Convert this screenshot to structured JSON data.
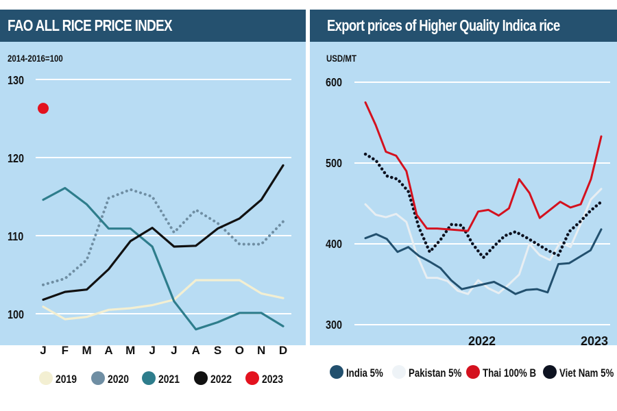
{
  "chart_data": [
    {
      "type": "line",
      "title": "FAO ALL RICE PRICE INDEX",
      "subtitle": "2014-2016=100",
      "xlabel": "",
      "ylabel": "2014-2016=100",
      "ylim": [
        97,
        130
      ],
      "yticks": [
        100,
        110,
        120,
        130
      ],
      "ytick_labels": [
        "100",
        "110",
        "120",
        "130"
      ],
      "grid": true,
      "legend_position": "bottom",
      "categories": [
        "J",
        "F",
        "M",
        "A",
        "M",
        "J",
        "J",
        "A",
        "S",
        "O",
        "N",
        "D"
      ],
      "series": [
        {
          "name": "2019",
          "color": "#f3efd2",
          "style": "solid",
          "values": [
            100.9,
            99.3,
            99.6,
            100.5,
            100.7,
            101.1,
            101.8,
            104.3,
            104.3,
            104.3,
            102.6,
            102.0
          ]
        },
        {
          "name": "2020",
          "color": "#6f8ea3",
          "style": "dotted",
          "values": [
            103.7,
            104.5,
            106.9,
            114.8,
            115.9,
            115.0,
            110.4,
            113.3,
            111.6,
            108.9,
            108.9,
            111.8
          ]
        },
        {
          "name": "2021",
          "color": "#2e7d8c",
          "style": "solid",
          "values": [
            114.6,
            116.1,
            114.0,
            110.9,
            110.9,
            108.6,
            101.6,
            98.0,
            98.9,
            100.1,
            100.1,
            98.4
          ]
        },
        {
          "name": "2022",
          "color": "#111111",
          "style": "solid",
          "values": [
            101.8,
            102.8,
            103.1,
            105.7,
            109.3,
            111.0,
            108.6,
            108.7,
            110.9,
            112.2,
            114.6,
            119.0
          ]
        },
        {
          "name": "2023",
          "color": "#e3121e",
          "style": "point",
          "values": [
            126.3,
            null,
            null,
            null,
            null,
            null,
            null,
            null,
            null,
            null,
            null,
            null
          ]
        }
      ]
    },
    {
      "type": "line",
      "title": "Export prices of Higher Quality Indica rice",
      "subtitle": "USD/MT",
      "xlabel": "",
      "ylabel": "USD/MT",
      "ylim": [
        300,
        600
      ],
      "yticks": [
        300,
        400,
        500,
        600
      ],
      "ytick_labels": [
        "300",
        "400",
        "500",
        "600"
      ],
      "grid": true,
      "legend_position": "bottom",
      "x_labels": [
        {
          "label": "2022",
          "index": 12
        },
        {
          "label": "2023",
          "index": 24
        }
      ],
      "x_count": 25,
      "series": [
        {
          "name": "India 5%",
          "color": "#22506e",
          "style": "solid",
          "values": [
            407,
            412,
            406,
            390,
            396,
            385,
            378,
            370,
            355,
            344,
            347,
            350,
            353,
            346,
            338,
            343,
            344,
            340,
            375,
            376,
            384,
            392,
            418
          ]
        },
        {
          "name": "Pakistan 5%",
          "color": "#e8eef2",
          "style": "solid",
          "values": [
            449,
            436,
            433,
            437,
            427,
            387,
            358,
            358,
            354,
            342,
            338,
            355,
            345,
            339,
            350,
            362,
            400,
            386,
            380,
            402,
            396,
            425,
            455,
            468
          ]
        },
        {
          "name": "Thai 100% B",
          "color": "#d4111e",
          "style": "solid",
          "values": [
            575,
            547,
            514,
            509,
            490,
            436,
            419,
            419,
            418,
            417,
            416,
            440,
            442,
            435,
            444,
            480,
            463,
            432,
            442,
            452,
            445,
            449,
            480,
            533
          ]
        },
        {
          "name": "Viet Nam 5%",
          "color": "#0d1220",
          "style": "dotted",
          "values": [
            511,
            503,
            484,
            480,
            465,
            420,
            390,
            405,
            424,
            423,
            400,
            383,
            397,
            410,
            415,
            408,
            400,
            392,
            386,
            415,
            427,
            441,
            452
          ]
        }
      ]
    }
  ]
}
